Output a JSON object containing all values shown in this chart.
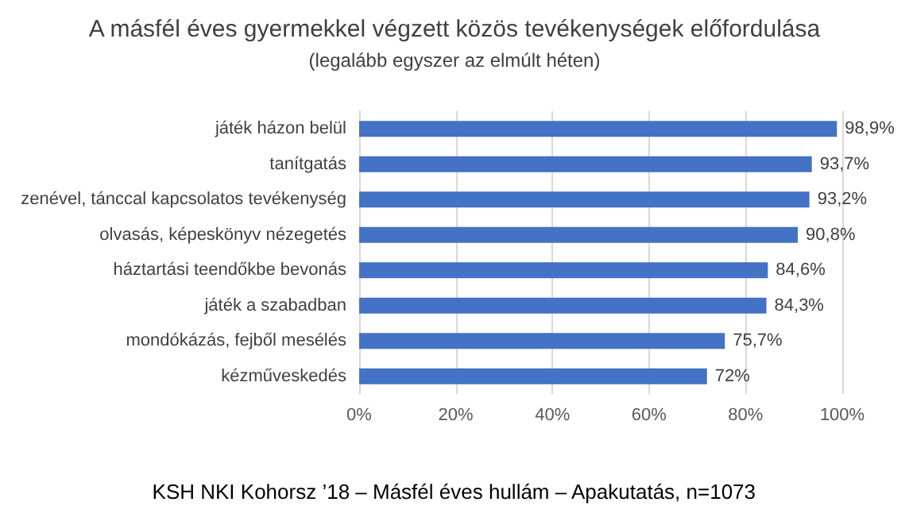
{
  "chart_data": {
    "type": "bar",
    "orientation": "horizontal",
    "title": "A másfél éves gyermekkel végzett közös tevékenységek előfordulása",
    "subtitle": "(legalább egyszer az elmúlt héten)",
    "categories": [
      "játék házon belül",
      "tanítgatás",
      "zenével, tánccal kapcsolatos tevékenység",
      "olvasás, képeskönyv nézegetés",
      "háztartási teendőkbe bevonás",
      "játék a szabadban",
      "mondókázás, fejből mesélés",
      "kézműveskedés"
    ],
    "values": [
      98.9,
      93.7,
      93.2,
      90.8,
      84.6,
      84.3,
      75.7,
      72
    ],
    "value_labels": [
      "98,9%",
      "93,7%",
      "93,2%",
      "90,8%",
      "84,6%",
      "84,3%",
      "75,7%",
      "72%"
    ],
    "color": "#4472c4",
    "xlim": [
      0,
      100
    ],
    "xticks": [
      {
        "value": 0,
        "label": "0%"
      },
      {
        "value": 20,
        "label": "20%"
      },
      {
        "value": 40,
        "label": "40%"
      },
      {
        "value": 60,
        "label": "60%"
      },
      {
        "value": 80,
        "label": "80%"
      },
      {
        "value": 100,
        "label": "100%"
      }
    ],
    "grid": "x",
    "annotations": [
      "KSH NKI Kohorsz ’18 – Másfél éves hullám – Apakutatás, n=1073"
    ]
  }
}
